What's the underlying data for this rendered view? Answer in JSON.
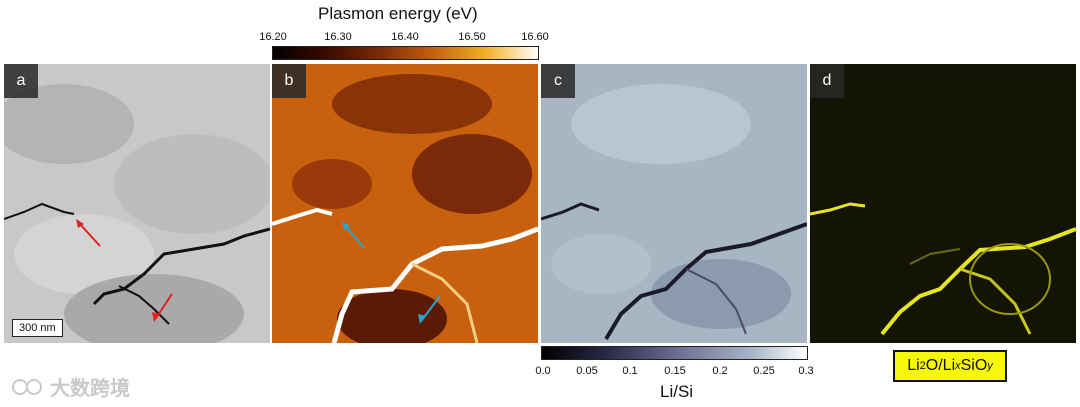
{
  "colorbar_top": {
    "title": "Plasmon energy (eV)",
    "ticks": [
      "16.20",
      "16.30",
      "16.40",
      "16.50",
      "16.60"
    ]
  },
  "colorbar_bottom": {
    "title": "Li/Si",
    "ticks": [
      "0.0",
      "0.05",
      "0.1",
      "0.15",
      "0.2",
      "0.25",
      "0.3"
    ]
  },
  "panels": {
    "a": {
      "label": "a",
      "scalebar": "300 nm"
    },
    "b": {
      "label": "b"
    },
    "c": {
      "label": "c"
    },
    "d": {
      "label": "d"
    }
  },
  "legend_d": {
    "p1": "Li",
    "s1": "2",
    "p2": "O/Li",
    "s2": "x",
    "p3": "SiO",
    "s3": "y"
  },
  "watermark": "大数跨境",
  "colors": {
    "arrow_red": "#e02020",
    "arrow_blue": "#2aa5c8",
    "legend_bg": "#f7f70a"
  }
}
